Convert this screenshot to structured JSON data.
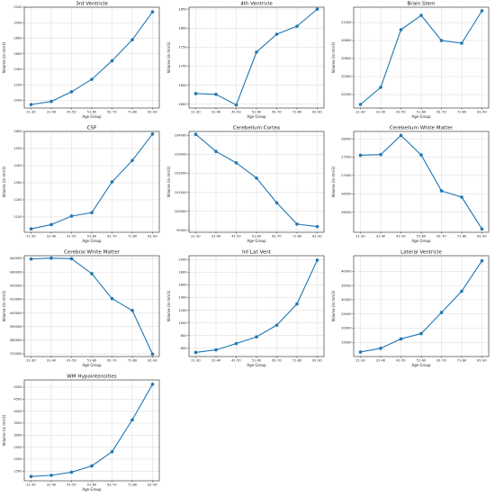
{
  "chart_data": [
    {
      "type": "line",
      "title": "3rd Ventricle",
      "xlabel": "Age Group",
      "ylabel": "Volume (in mm3)",
      "categories": [
        "21-30",
        "31-40",
        "41-50",
        "51-60",
        "61-70",
        "71-80",
        "81-90"
      ],
      "series": [
        {
          "values": [
            945,
            985,
            1110,
            1270,
            1510,
            1780,
            2140
          ]
        }
      ],
      "ylim": [
        900,
        2200
      ],
      "yticks": [
        1000,
        1200,
        1400,
        1600,
        1800,
        2000,
        2200
      ],
      "grid": true
    },
    {
      "type": "line",
      "title": "4th Ventricle",
      "xlabel": "Age Group",
      "ylabel": "Volume (in mm3)",
      "categories": [
        "21-30",
        "31-40",
        "41-50",
        "51-60",
        "61-70",
        "71-80",
        "81-90"
      ],
      "series": [
        {
          "values": [
            1628,
            1626,
            1598,
            1737,
            1784,
            1805,
            1850
          ]
        }
      ],
      "ylim": [
        1590,
        1855
      ],
      "yticks": [
        1600,
        1650,
        1700,
        1750,
        1800,
        1850
      ],
      "grid": true
    },
    {
      "type": "line",
      "title": "Brain Stem",
      "xlabel": "Age Group",
      "ylabel": "Volume (in mm3)",
      "categories": [
        "21-30",
        "31-40",
        "41-50",
        "51-60",
        "61-70",
        "71-80",
        "81-90"
      ],
      "series": [
        {
          "values": [
            20090,
            20280,
            20920,
            21080,
            20800,
            20770,
            21130
          ]
        }
      ],
      "ylim": [
        20050,
        21170
      ],
      "yticks": [
        20200,
        20400,
        20600,
        20800,
        21000
      ],
      "grid": true
    },
    {
      "type": "line",
      "title": "CSF",
      "xlabel": "Age Group",
      "ylabel": "Volume (in mm3)",
      "categories": [
        "21-30",
        "31-40",
        "41-50",
        "51-60",
        "61-70",
        "71-80",
        "81-90"
      ],
      "series": [
        {
          "values": [
            1030,
            1055,
            1105,
            1125,
            1305,
            1430,
            1585
          ]
        }
      ],
      "ylim": [
        1010,
        1600
      ],
      "yticks": [
        1100,
        1200,
        1300,
        1400,
        1500,
        1600
      ],
      "grid": true
    },
    {
      "type": "line",
      "title": "Cerebellum Cortex",
      "xlabel": "Age Group",
      "ylabel": "Volume (in mm3)",
      "categories": [
        "21-30",
        "31-40",
        "41-50",
        "51-60",
        "61-70",
        "71-80",
        "81-90"
      ],
      "series": [
        {
          "values": [
            104050,
            103150,
            102550,
            101750,
            100450,
            99330,
            99200
          ]
        }
      ],
      "ylim": [
        98900,
        104200
      ],
      "yticks": [
        99000,
        100000,
        101000,
        102000,
        103000,
        104000
      ],
      "grid": true
    },
    {
      "type": "line",
      "title": "Cerebellum White Matter",
      "xlabel": "Age Group",
      "ylabel": "Volume (in mm3)",
      "categories": [
        "21-30",
        "31-40",
        "41-50",
        "51-60",
        "61-70",
        "71-80",
        "81-90"
      ],
      "series": [
        {
          "values": [
            27550,
            27570,
            28090,
            27560,
            26580,
            26410,
            25540
          ]
        }
      ],
      "ylim": [
        25450,
        28200
      ],
      "yticks": [
        26000,
        26500,
        27000,
        27500,
        28000
      ],
      "grid": true
    },
    {
      "type": "line",
      "title": "Cerebral White Matter",
      "xlabel": "Age Group",
      "ylabel": "Volume (in mm3)",
      "categories": [
        "21-30",
        "31-40",
        "41-50",
        "51-60",
        "61-70",
        "71-80",
        "81-90"
      ],
      "series": [
        {
          "values": [
            439600,
            440200,
            439800,
            428800,
            410500,
            401800,
            369800
          ]
        }
      ],
      "ylim": [
        368000,
        442000
      ],
      "yticks": [
        370000,
        380000,
        390000,
        400000,
        410000,
        420000,
        430000,
        440000
      ],
      "grid": true
    },
    {
      "type": "line",
      "title": "Inf Lat Vent",
      "xlabel": "Age Group",
      "ylabel": "Volume (in mm3)",
      "categories": [
        "21-30",
        "31-40",
        "41-50",
        "51-60",
        "61-70",
        "71-80",
        "81-90"
      ],
      "series": [
        {
          "values": [
            535,
            575,
            675,
            780,
            965,
            1300,
            1990
          ]
        }
      ],
      "ylim": [
        470,
        2060
      ],
      "yticks": [
        600,
        800,
        1000,
        1200,
        1400,
        1600,
        1800,
        2000
      ],
      "grid": true
    },
    {
      "type": "line",
      "title": "Lateral Ventricle",
      "xlabel": "Age Group",
      "ylabel": "Volume (in mm3)",
      "categories": [
        "21-30",
        "31-40",
        "41-50",
        "51-60",
        "61-70",
        "71-80",
        "81-90"
      ],
      "series": [
        {
          "values": [
            11600,
            12900,
            16200,
            18100,
            25500,
            33000,
            43700
          ]
        }
      ],
      "ylim": [
        10000,
        45500
      ],
      "yticks": [
        15000,
        20000,
        25000,
        30000,
        35000,
        40000
      ],
      "grid": true
    },
    {
      "type": "line",
      "title": "WM Hypointensities",
      "xlabel": "Age Group",
      "ylabel": "Volume (in mm3)",
      "categories": [
        "21-30",
        "31-40",
        "41-50",
        "51-60",
        "61-70",
        "71-80",
        "81-90"
      ],
      "series": [
        {
          "values": [
            1280,
            1330,
            1460,
            1720,
            2310,
            3640,
            5120
          ]
        }
      ],
      "ylim": [
        1100,
        5300
      ],
      "yticks": [
        1500,
        2000,
        2500,
        3000,
        3500,
        4000,
        4500,
        5000
      ],
      "grid": true
    }
  ],
  "colors": {
    "series": "#1f77b4",
    "grid": "#d9d9d9",
    "axis": "#222222"
  }
}
